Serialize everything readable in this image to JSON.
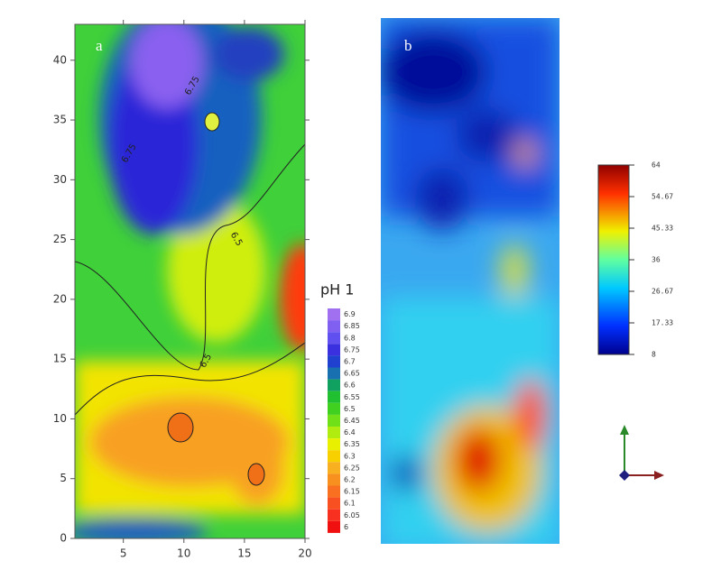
{
  "chart_data": [
    {
      "type": "contour",
      "label": "a",
      "xlim": [
        1,
        20
      ],
      "xticks": [
        5,
        10,
        15,
        20
      ],
      "ylim": [
        0,
        43
      ],
      "yticks": [
        0,
        5,
        10,
        15,
        20,
        25,
        30,
        35,
        40
      ],
      "annotations": [
        "6.75",
        "6.75",
        "6.5",
        "6.5"
      ],
      "colorbar": {
        "title": "pH 1",
        "ticks": [
          6.9,
          6.85,
          6.8,
          6.75,
          6.7,
          6.65,
          6.6,
          6.55,
          6.5,
          6.45,
          6.4,
          6.35,
          6.3,
          6.25,
          6.2,
          6.15,
          6.1,
          6.05,
          6
        ]
      }
    },
    {
      "type": "heatmap",
      "label": "b",
      "colorbar": {
        "lim": [
          8,
          64
        ],
        "ticks": [
          64,
          54.67,
          45.33,
          36,
          26.67,
          17.33,
          8
        ]
      }
    }
  ]
}
